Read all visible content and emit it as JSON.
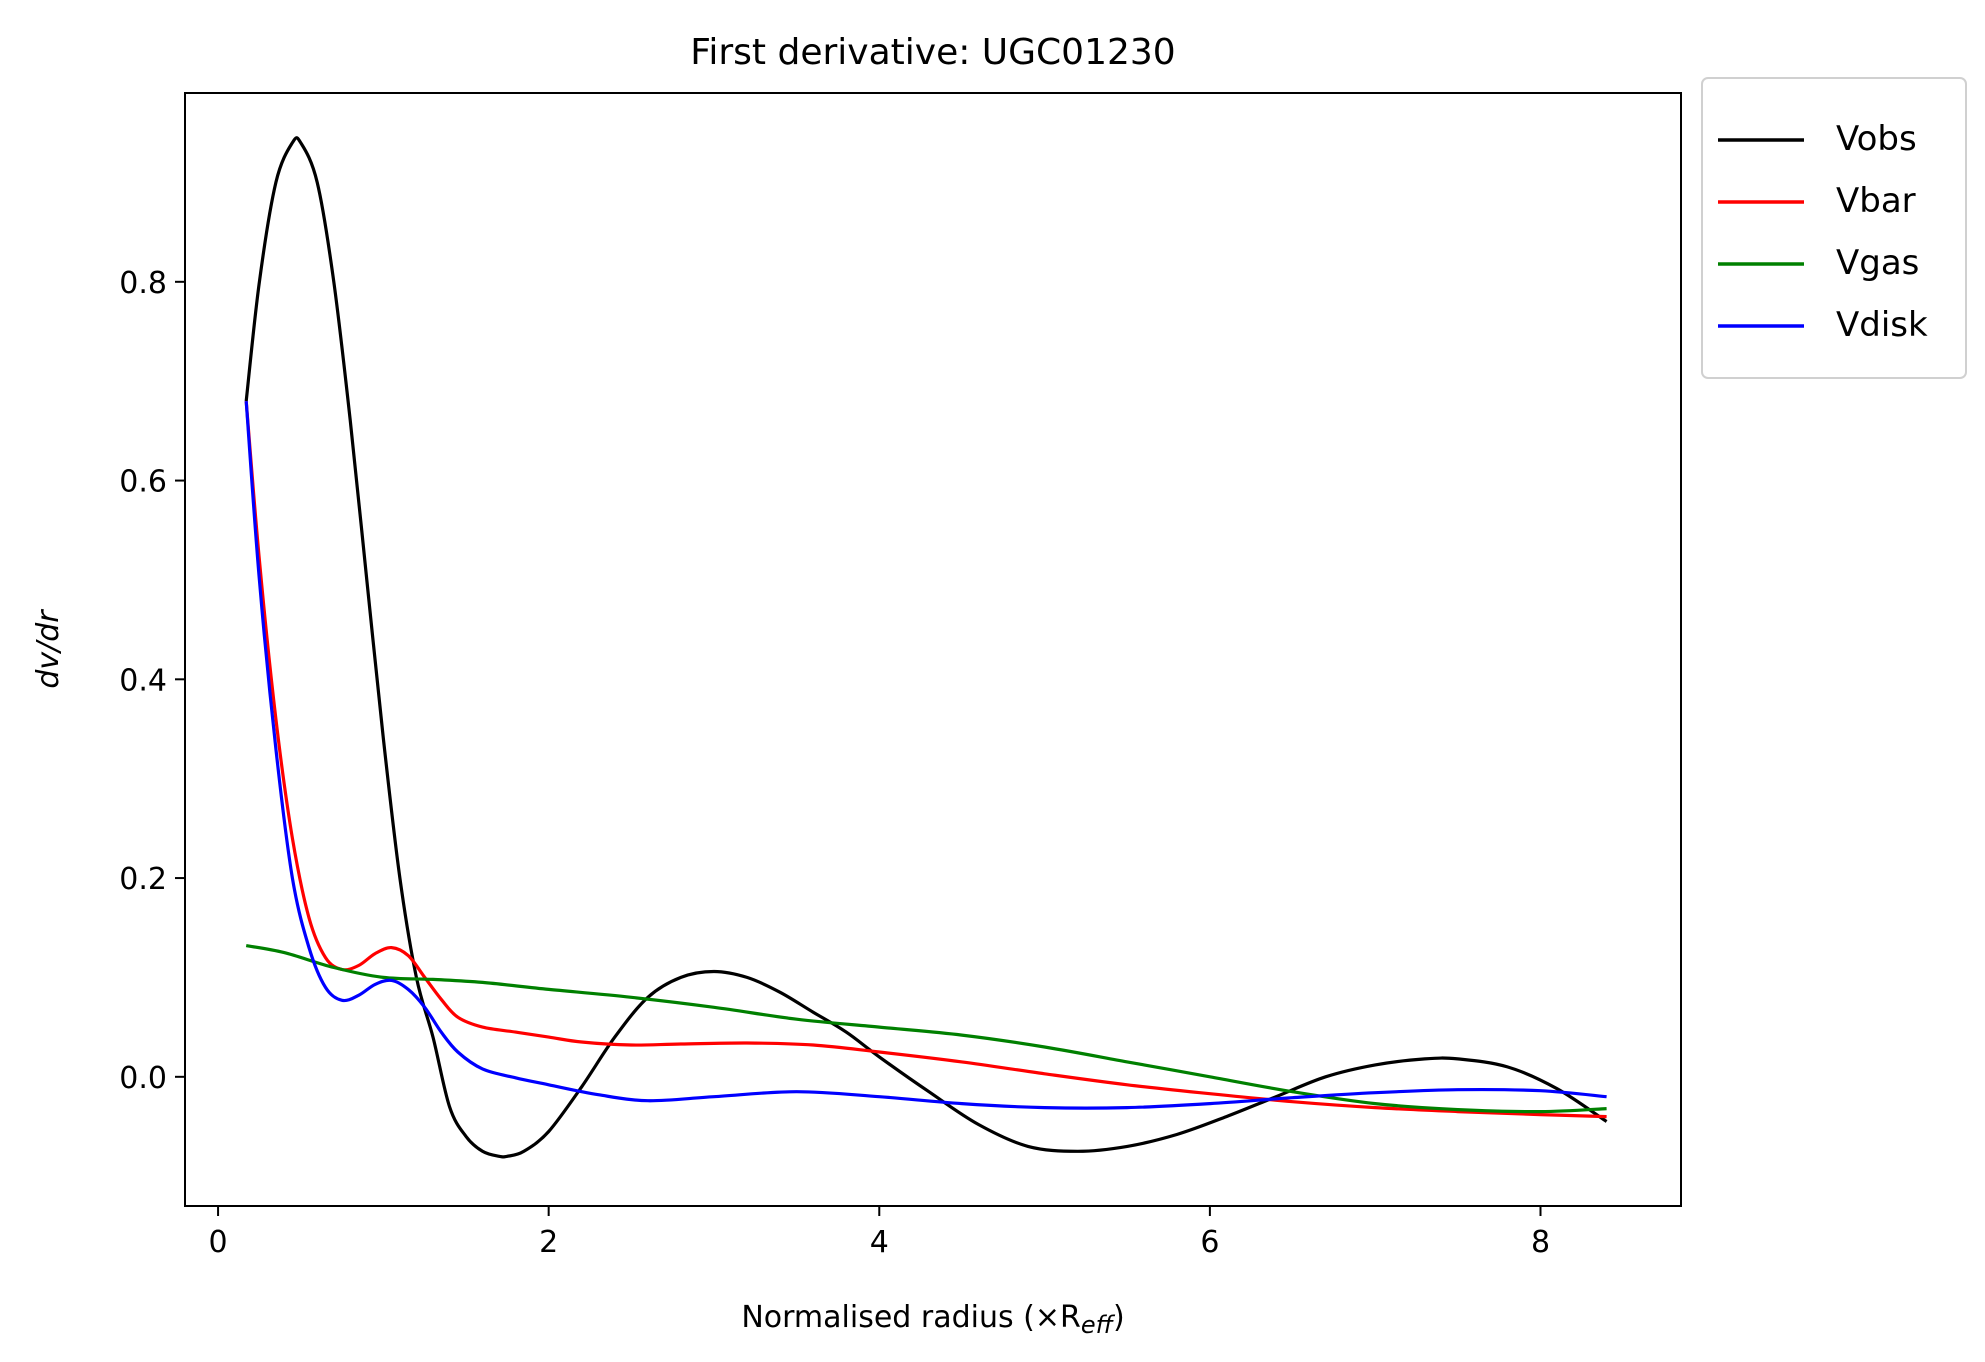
{
  "chart_data": {
    "type": "line",
    "title": "First derivative: UGC01230",
    "xlabel": "Normalised radius (×R",
    "xlabel_sub": "eff",
    "xlabel_close": ")",
    "ylabel": "dv/dr",
    "xlim": [
      -0.2,
      8.85
    ],
    "ylim": [
      -0.13,
      0.99
    ],
    "xticks": [
      0,
      2,
      4,
      6,
      8
    ],
    "xtick_labels": [
      "0",
      "2",
      "4",
      "6",
      "8"
    ],
    "yticks": [
      0.0,
      0.2,
      0.4,
      0.6,
      0.8
    ],
    "ytick_labels": [
      "0.0",
      "0.2",
      "0.4",
      "0.6",
      "0.8"
    ],
    "grid": false,
    "legend_position": "outside-top-right",
    "series": [
      {
        "name": "Vobs",
        "color": "#000000",
        "x": [
          0.17,
          0.25,
          0.35,
          0.45,
          0.5,
          0.6,
          0.7,
          0.8,
          0.9,
          1.0,
          1.1,
          1.2,
          1.3,
          1.4,
          1.5,
          1.6,
          1.7,
          1.75,
          1.85,
          2.0,
          2.2,
          2.4,
          2.6,
          2.8,
          3.0,
          3.2,
          3.4,
          3.6,
          3.8,
          4.0,
          4.3,
          4.6,
          4.9,
          5.2,
          5.5,
          5.8,
          6.1,
          6.4,
          6.7,
          7.0,
          7.3,
          7.5,
          7.8,
          8.1,
          8.4
        ],
        "y": [
          0.68,
          0.8,
          0.9,
          0.94,
          0.94,
          0.9,
          0.8,
          0.66,
          0.5,
          0.34,
          0.2,
          0.1,
          0.04,
          -0.03,
          -0.06,
          -0.075,
          -0.08,
          -0.08,
          -0.075,
          -0.055,
          -0.01,
          0.04,
          0.08,
          0.1,
          0.106,
          0.1,
          0.085,
          0.065,
          0.045,
          0.02,
          -0.015,
          -0.048,
          -0.07,
          -0.075,
          -0.07,
          -0.058,
          -0.04,
          -0.02,
          0.0,
          0.012,
          0.018,
          0.018,
          0.01,
          -0.012,
          -0.045
        ]
      },
      {
        "name": "Vbar",
        "color": "#ff0000",
        "x": [
          0.17,
          0.25,
          0.35,
          0.45,
          0.55,
          0.65,
          0.75,
          0.85,
          0.95,
          1.05,
          1.15,
          1.25,
          1.35,
          1.45,
          1.6,
          1.8,
          2.0,
          2.2,
          2.5,
          2.8,
          3.2,
          3.6,
          4.0,
          4.5,
          5.0,
          5.5,
          6.0,
          6.5,
          7.0,
          7.5,
          8.0,
          8.4
        ],
        "y": [
          0.68,
          0.52,
          0.36,
          0.24,
          0.16,
          0.12,
          0.108,
          0.112,
          0.124,
          0.13,
          0.122,
          0.1,
          0.078,
          0.06,
          0.05,
          0.045,
          0.04,
          0.035,
          0.032,
          0.033,
          0.034,
          0.032,
          0.025,
          0.015,
          0.003,
          -0.008,
          -0.017,
          -0.025,
          -0.031,
          -0.035,
          -0.038,
          -0.04
        ]
      },
      {
        "name": "Vgas",
        "color": "#008000",
        "x": [
          0.17,
          0.4,
          0.7,
          1.0,
          1.3,
          1.6,
          2.0,
          2.5,
          3.0,
          3.5,
          4.0,
          4.5,
          5.0,
          5.5,
          6.0,
          6.5,
          7.0,
          7.5,
          8.0,
          8.4
        ],
        "y": [
          0.132,
          0.125,
          0.11,
          0.1,
          0.098,
          0.095,
          0.088,
          0.08,
          0.07,
          0.058,
          0.05,
          0.042,
          0.03,
          0.015,
          0.0,
          -0.015,
          -0.027,
          -0.033,
          -0.035,
          -0.032
        ]
      },
      {
        "name": "Vdisk",
        "color": "#0000ff",
        "x": [
          0.17,
          0.25,
          0.35,
          0.45,
          0.55,
          0.65,
          0.75,
          0.85,
          0.95,
          1.05,
          1.15,
          1.25,
          1.35,
          1.45,
          1.6,
          1.8,
          2.0,
          2.3,
          2.6,
          3.0,
          3.5,
          4.0,
          4.5,
          5.0,
          5.5,
          6.0,
          6.5,
          7.0,
          7.5,
          8.0,
          8.4
        ],
        "y": [
          0.68,
          0.5,
          0.33,
          0.2,
          0.13,
          0.09,
          0.077,
          0.082,
          0.093,
          0.097,
          0.088,
          0.07,
          0.045,
          0.025,
          0.008,
          -0.001,
          -0.008,
          -0.018,
          -0.024,
          -0.02,
          -0.015,
          -0.02,
          -0.027,
          -0.031,
          -0.031,
          -0.027,
          -0.021,
          -0.016,
          -0.013,
          -0.014,
          -0.02
        ]
      }
    ]
  }
}
